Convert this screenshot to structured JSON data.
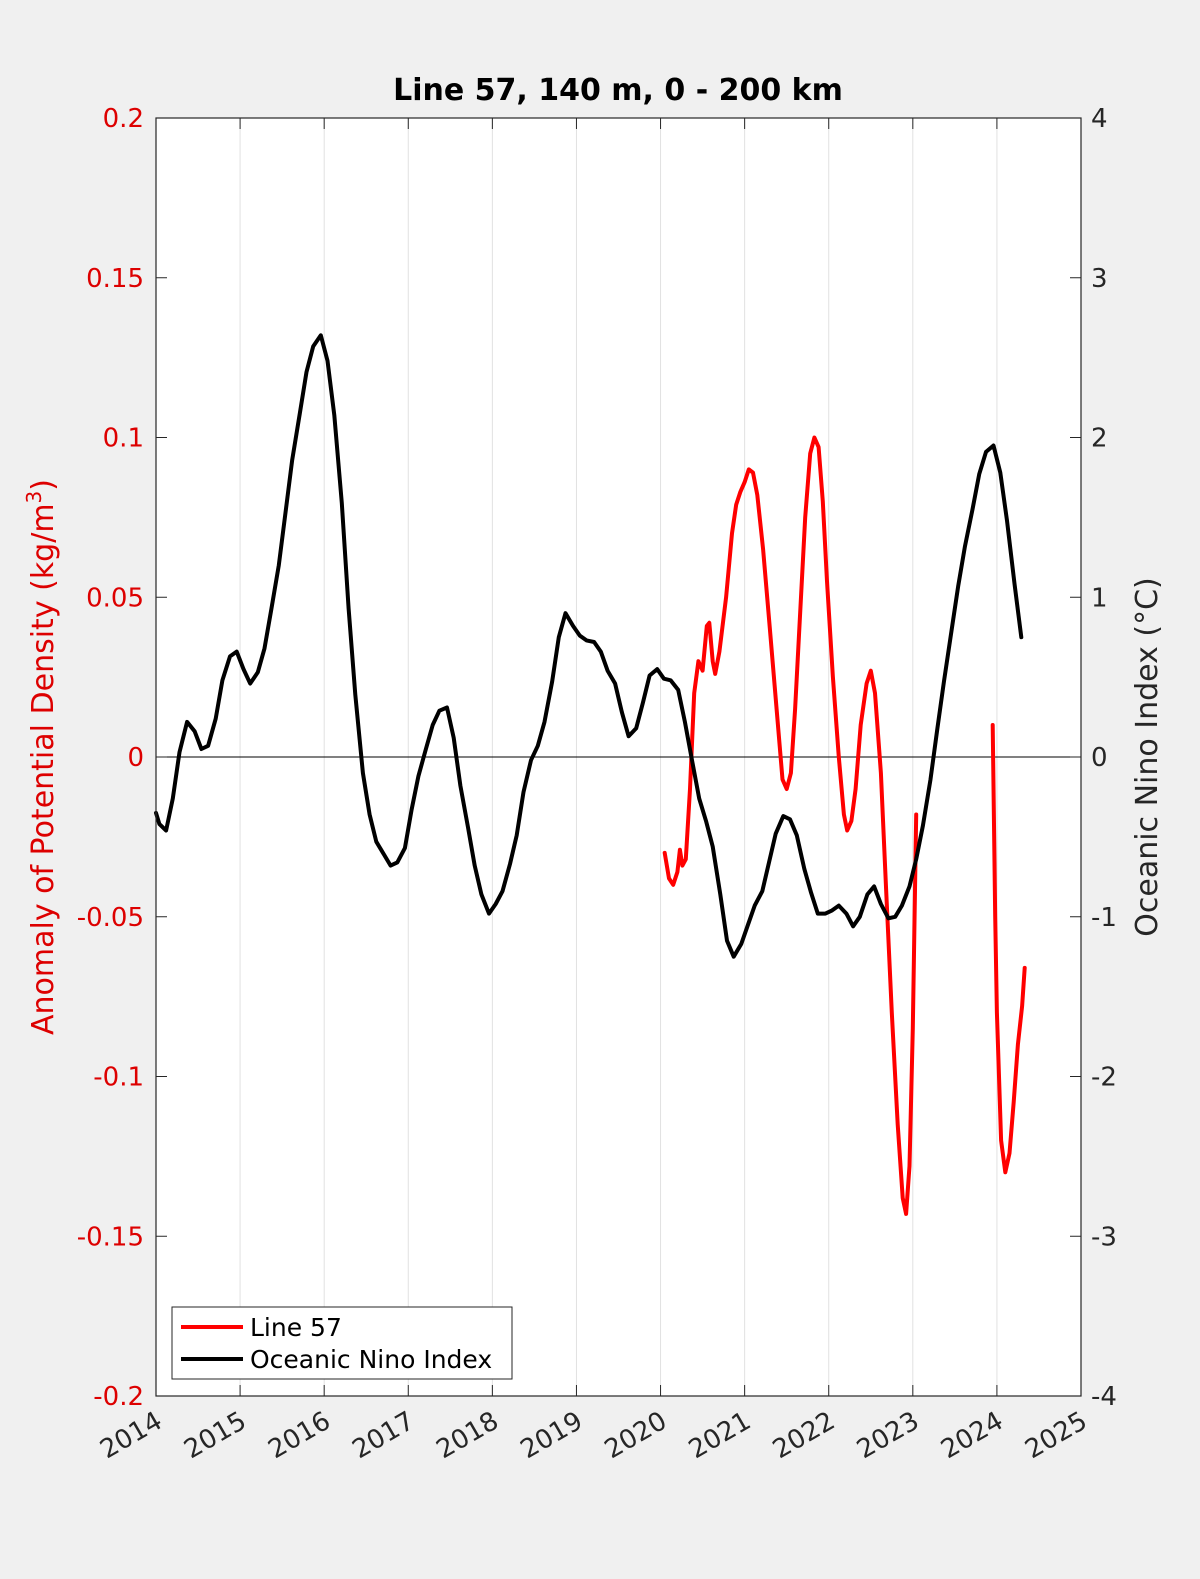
{
  "chart_data": {
    "type": "line",
    "title": "Line 57, 140 m, 0 - 200 km",
    "xlabel": "",
    "ylabel_left": "Anomaly of Potential Density (kg/m",
    "ylabel_left_sup": "3",
    "ylabel_left_close": ")",
    "ylabel_right": "Oceanic Nino Index (°C)",
    "xlim": [
      2014,
      2025
    ],
    "ylim_left": [
      -0.2,
      0.2
    ],
    "ylim_right": [
      -4,
      4
    ],
    "x_ticks": [
      "2014",
      "2015",
      "2016",
      "2017",
      "2018",
      "2019",
      "2020",
      "2021",
      "2022",
      "2023",
      "2024",
      "2025"
    ],
    "y_left_ticks": [
      "-0.2",
      "-0.15",
      "-0.1",
      "-0.05",
      "0",
      "0.05",
      "0.1",
      "0.15",
      "0.2"
    ],
    "y_right_ticks": [
      "-4",
      "-3",
      "-2",
      "-1",
      "0",
      "1",
      "2",
      "3",
      "4"
    ],
    "grid": "vertical",
    "zero_line": true,
    "legend_position": "bottom-left",
    "colors": {
      "line57": "#ff0000",
      "oni": "#000000",
      "left_axis": "#dd0000"
    },
    "series": [
      {
        "name": "Line 57",
        "axis": "left",
        "segments": [
          [
            [
              2020.05,
              -0.03
            ],
            [
              2020.1,
              -0.038
            ],
            [
              2020.15,
              -0.04
            ],
            [
              2020.2,
              -0.036
            ],
            [
              2020.23,
              -0.029
            ],
            [
              2020.26,
              -0.034
            ],
            [
              2020.3,
              -0.032
            ],
            [
              2020.35,
              -0.01
            ],
            [
              2020.4,
              0.02
            ],
            [
              2020.45,
              0.03
            ],
            [
              2020.5,
              0.027
            ],
            [
              2020.55,
              0.041
            ],
            [
              2020.58,
              0.042
            ],
            [
              2020.62,
              0.03
            ],
            [
              2020.65,
              0.026
            ],
            [
              2020.7,
              0.033
            ],
            [
              2020.78,
              0.05
            ],
            [
              2020.85,
              0.07
            ],
            [
              2020.9,
              0.079
            ],
            [
              2020.95,
              0.083
            ],
            [
              2021.0,
              0.086
            ],
            [
              2021.05,
              0.09
            ],
            [
              2021.1,
              0.089
            ],
            [
              2021.15,
              0.082
            ],
            [
              2021.22,
              0.065
            ],
            [
              2021.3,
              0.04
            ],
            [
              2021.38,
              0.015
            ],
            [
              2021.45,
              -0.007
            ],
            [
              2021.5,
              -0.01
            ],
            [
              2021.55,
              -0.005
            ],
            [
              2021.6,
              0.015
            ],
            [
              2021.65,
              0.04
            ],
            [
              2021.72,
              0.075
            ],
            [
              2021.78,
              0.095
            ],
            [
              2021.83,
              0.1
            ],
            [
              2021.88,
              0.097
            ],
            [
              2021.93,
              0.08
            ],
            [
              2021.98,
              0.055
            ],
            [
              2022.05,
              0.025
            ],
            [
              2022.12,
              0.0
            ],
            [
              2022.18,
              -0.018
            ],
            [
              2022.22,
              -0.023
            ],
            [
              2022.27,
              -0.02
            ],
            [
              2022.32,
              -0.01
            ],
            [
              2022.38,
              0.01
            ],
            [
              2022.45,
              0.023
            ],
            [
              2022.5,
              0.027
            ],
            [
              2022.55,
              0.02
            ],
            [
              2022.62,
              -0.005
            ],
            [
              2022.68,
              -0.04
            ],
            [
              2022.75,
              -0.08
            ],
            [
              2022.82,
              -0.115
            ],
            [
              2022.88,
              -0.138
            ],
            [
              2022.92,
              -0.143
            ],
            [
              2022.96,
              -0.128
            ],
            [
              2023.0,
              -0.085
            ],
            [
              2023.04,
              -0.018
            ]
          ],
          [
            [
              2023.95,
              0.01
            ],
            [
              2023.98,
              -0.05
            ],
            [
              2024.0,
              -0.08
            ],
            [
              2024.05,
              -0.12
            ],
            [
              2024.1,
              -0.13
            ],
            [
              2024.15,
              -0.124
            ],
            [
              2024.2,
              -0.108
            ],
            [
              2024.25,
              -0.09
            ],
            [
              2024.3,
              -0.078
            ],
            [
              2024.33,
              -0.066
            ]
          ]
        ]
      },
      {
        "name": "Oceanic Nino Index",
        "axis": "right",
        "segments": [
          [
            [
              2014.0,
              -0.35
            ],
            [
              2014.04,
              -0.42
            ],
            [
              2014.12,
              -0.46
            ],
            [
              2014.2,
              -0.26
            ],
            [
              2014.28,
              0.03
            ],
            [
              2014.37,
              0.22
            ],
            [
              2014.46,
              0.16
            ],
            [
              2014.54,
              0.05
            ],
            [
              2014.62,
              0.07
            ],
            [
              2014.71,
              0.24
            ],
            [
              2014.79,
              0.48
            ],
            [
              2014.88,
              0.63
            ],
            [
              2014.96,
              0.66
            ],
            [
              2015.04,
              0.55
            ],
            [
              2015.12,
              0.46
            ],
            [
              2015.21,
              0.53
            ],
            [
              2015.29,
              0.68
            ],
            [
              2015.37,
              0.92
            ],
            [
              2015.46,
              1.2
            ],
            [
              2015.54,
              1.53
            ],
            [
              2015.62,
              1.86
            ],
            [
              2015.71,
              2.15
            ],
            [
              2015.79,
              2.41
            ],
            [
              2015.87,
              2.57
            ],
            [
              2015.96,
              2.64
            ],
            [
              2016.04,
              2.48
            ],
            [
              2016.12,
              2.14
            ],
            [
              2016.21,
              1.59
            ],
            [
              2016.29,
              0.93
            ],
            [
              2016.37,
              0.39
            ],
            [
              2016.46,
              -0.1
            ],
            [
              2016.54,
              -0.36
            ],
            [
              2016.62,
              -0.53
            ],
            [
              2016.71,
              -0.61
            ],
            [
              2016.79,
              -0.68
            ],
            [
              2016.87,
              -0.66
            ],
            [
              2016.96,
              -0.57
            ],
            [
              2017.04,
              -0.33
            ],
            [
              2017.12,
              -0.12
            ],
            [
              2017.21,
              0.05
            ],
            [
              2017.29,
              0.2
            ],
            [
              2017.37,
              0.29
            ],
            [
              2017.46,
              0.31
            ],
            [
              2017.54,
              0.12
            ],
            [
              2017.62,
              -0.18
            ],
            [
              2017.71,
              -0.44
            ],
            [
              2017.79,
              -0.68
            ],
            [
              2017.87,
              -0.86
            ],
            [
              2017.96,
              -0.98
            ],
            [
              2018.04,
              -0.92
            ],
            [
              2018.12,
              -0.84
            ],
            [
              2018.21,
              -0.67
            ],
            [
              2018.29,
              -0.49
            ],
            [
              2018.37,
              -0.22
            ],
            [
              2018.46,
              -0.02
            ],
            [
              2018.54,
              0.07
            ],
            [
              2018.62,
              0.22
            ],
            [
              2018.71,
              0.47
            ],
            [
              2018.79,
              0.75
            ],
            [
              2018.87,
              0.9
            ],
            [
              2018.96,
              0.82
            ],
            [
              2019.04,
              0.76
            ],
            [
              2019.12,
              0.73
            ],
            [
              2019.21,
              0.72
            ],
            [
              2019.29,
              0.66
            ],
            [
              2019.37,
              0.54
            ],
            [
              2019.46,
              0.46
            ],
            [
              2019.54,
              0.28
            ],
            [
              2019.62,
              0.13
            ],
            [
              2019.71,
              0.18
            ],
            [
              2019.79,
              0.34
            ],
            [
              2019.87,
              0.51
            ],
            [
              2019.96,
              0.55
            ],
            [
              2020.04,
              0.49
            ],
            [
              2020.12,
              0.48
            ],
            [
              2020.21,
              0.42
            ],
            [
              2020.29,
              0.22
            ],
            [
              2020.37,
              -0.01
            ],
            [
              2020.46,
              -0.26
            ],
            [
              2020.54,
              -0.4
            ],
            [
              2020.62,
              -0.56
            ],
            [
              2020.71,
              -0.86
            ],
            [
              2020.79,
              -1.15
            ],
            [
              2020.87,
              -1.25
            ],
            [
              2020.96,
              -1.17
            ],
            [
              2021.04,
              -1.05
            ],
            [
              2021.12,
              -0.93
            ],
            [
              2021.21,
              -0.84
            ],
            [
              2021.29,
              -0.66
            ],
            [
              2021.37,
              -0.48
            ],
            [
              2021.46,
              -0.37
            ],
            [
              2021.54,
              -0.39
            ],
            [
              2021.62,
              -0.49
            ],
            [
              2021.71,
              -0.7
            ],
            [
              2021.79,
              -0.85
            ],
            [
              2021.87,
              -0.98
            ],
            [
              2021.96,
              -0.98
            ],
            [
              2022.04,
              -0.96
            ],
            [
              2022.12,
              -0.93
            ],
            [
              2022.21,
              -0.98
            ],
            [
              2022.29,
              -1.06
            ],
            [
              2022.37,
              -1.0
            ],
            [
              2022.46,
              -0.86
            ],
            [
              2022.54,
              -0.81
            ],
            [
              2022.62,
              -0.92
            ],
            [
              2022.71,
              -1.01
            ],
            [
              2022.79,
              -1.0
            ],
            [
              2022.87,
              -0.93
            ],
            [
              2022.96,
              -0.81
            ],
            [
              2023.04,
              -0.64
            ],
            [
              2023.12,
              -0.43
            ],
            [
              2023.21,
              -0.14
            ],
            [
              2023.29,
              0.17
            ],
            [
              2023.37,
              0.47
            ],
            [
              2023.46,
              0.79
            ],
            [
              2023.54,
              1.07
            ],
            [
              2023.62,
              1.32
            ],
            [
              2023.71,
              1.55
            ],
            [
              2023.79,
              1.77
            ],
            [
              2023.87,
              1.91
            ],
            [
              2023.96,
              1.95
            ],
            [
              2024.04,
              1.78
            ],
            [
              2024.12,
              1.48
            ],
            [
              2024.21,
              1.08
            ],
            [
              2024.29,
              0.75
            ]
          ]
        ]
      }
    ]
  },
  "legend": {
    "items": [
      {
        "label": "Line 57",
        "color": "#ff0000"
      },
      {
        "label": "Oceanic Nino Index",
        "color": "#000000"
      }
    ]
  }
}
